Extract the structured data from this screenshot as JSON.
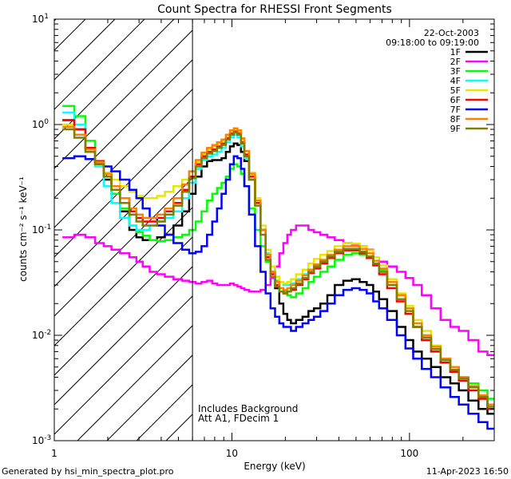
{
  "chart_data": {
    "type": "line",
    "title": "Count Spectra for RHESSI Front Segments",
    "xlabel": "Energy (keV)",
    "ylabel": "counts cm⁻² s⁻¹ keV⁻¹",
    "x_scale": "log",
    "y_scale": "log",
    "xlim": [
      1,
      300
    ],
    "ylim": [
      0.001,
      10
    ],
    "x_tick_labels": [
      {
        "value": 1,
        "label": "1"
      },
      {
        "value": 10,
        "label": "10"
      },
      {
        "value": 100,
        "label": "100"
      }
    ],
    "y_tick_labels": [
      {
        "value": 0.001,
        "base": "10",
        "exp": "-3"
      },
      {
        "value": 0.01,
        "base": "10",
        "exp": "-2"
      },
      {
        "value": 0.1,
        "base": "10",
        "exp": "-1"
      },
      {
        "value": 1,
        "base": "10",
        "exp": "0"
      },
      {
        "value": 10,
        "base": "10",
        "exp": "1"
      }
    ],
    "date": "22-Oct-2003",
    "time_range": "09:18:00 to 09:19:00",
    "hatched_region_max_kev": 6,
    "annotations": [
      "Includes Background",
      "Att A1, FDecim  1"
    ],
    "x": [
      1.2,
      1.4,
      1.6,
      1.8,
      2.0,
      2.2,
      2.5,
      2.8,
      3.0,
      3.3,
      3.6,
      4.0,
      4.4,
      5.0,
      5.5,
      6.0,
      6.5,
      7.0,
      7.5,
      8.0,
      8.5,
      9.0,
      9.5,
      10.0,
      10.5,
      11.0,
      11.5,
      12.0,
      13.0,
      14.0,
      15.0,
      16.0,
      17.0,
      18.0,
      19.0,
      20.0,
      21.0,
      22.0,
      24.0,
      26.0,
      28.0,
      30.0,
      33.0,
      36.0,
      40.0,
      45.0,
      50.0,
      55.0,
      60.0,
      65.0,
      70.0,
      80.0,
      90.0,
      100.0,
      110.0,
      125.0,
      140.0,
      160.0,
      180.0,
      200.0,
      230.0,
      260.0,
      290.0
    ],
    "series": [
      {
        "name": "1F",
        "color": "#000000",
        "values": [
          1.1,
          0.9,
          0.6,
          0.42,
          0.3,
          0.22,
          0.15,
          0.1,
          0.085,
          0.08,
          0.08,
          0.085,
          0.09,
          0.11,
          0.15,
          0.22,
          0.32,
          0.4,
          0.45,
          0.46,
          0.46,
          0.48,
          0.55,
          0.62,
          0.66,
          0.64,
          0.55,
          0.45,
          0.3,
          0.18,
          0.1,
          0.06,
          0.04,
          0.028,
          0.02,
          0.016,
          0.014,
          0.013,
          0.014,
          0.015,
          0.017,
          0.018,
          0.02,
          0.024,
          0.03,
          0.033,
          0.034,
          0.032,
          0.03,
          0.026,
          0.022,
          0.017,
          0.012,
          0.009,
          0.007,
          0.006,
          0.005,
          0.004,
          0.0035,
          0.003,
          0.0024,
          0.002,
          0.0018
        ]
      },
      {
        "name": "2F",
        "color": "#ff00ff",
        "values": [
          0.085,
          0.09,
          0.085,
          0.075,
          0.07,
          0.065,
          0.06,
          0.055,
          0.05,
          0.045,
          0.04,
          0.038,
          0.036,
          0.034,
          0.033,
          0.032,
          0.031,
          0.032,
          0.033,
          0.031,
          0.03,
          0.03,
          0.03,
          0.031,
          0.03,
          0.029,
          0.028,
          0.027,
          0.026,
          0.026,
          0.027,
          0.03,
          0.035,
          0.045,
          0.06,
          0.075,
          0.09,
          0.1,
          0.11,
          0.11,
          0.1,
          0.095,
          0.09,
          0.085,
          0.08,
          0.075,
          0.072,
          0.07,
          0.065,
          0.055,
          0.05,
          0.045,
          0.04,
          0.035,
          0.03,
          0.024,
          0.018,
          0.014,
          0.012,
          0.011,
          0.009,
          0.007,
          0.0065
        ]
      },
      {
        "name": "3F",
        "color": "#00ff00",
        "values": [
          1.5,
          1.2,
          0.7,
          0.45,
          0.32,
          0.22,
          0.16,
          0.11,
          0.095,
          0.088,
          0.08,
          0.078,
          0.08,
          0.085,
          0.09,
          0.1,
          0.12,
          0.15,
          0.19,
          0.22,
          0.25,
          0.28,
          0.32,
          0.38,
          0.42,
          0.4,
          0.34,
          0.26,
          0.16,
          0.1,
          0.07,
          0.05,
          0.04,
          0.033,
          0.028,
          0.026,
          0.024,
          0.023,
          0.025,
          0.028,
          0.032,
          0.036,
          0.04,
          0.045,
          0.052,
          0.058,
          0.06,
          0.058,
          0.054,
          0.048,
          0.042,
          0.032,
          0.024,
          0.018,
          0.013,
          0.01,
          0.008,
          0.006,
          0.005,
          0.004,
          0.0035,
          0.003,
          0.0025
        ]
      },
      {
        "name": "4F",
        "color": "#00ffff",
        "values": [
          1.3,
          1.0,
          0.6,
          0.4,
          0.26,
          0.18,
          0.13,
          0.11,
          0.1,
          0.1,
          0.11,
          0.12,
          0.13,
          0.15,
          0.2,
          0.28,
          0.38,
          0.46,
          0.5,
          0.52,
          0.55,
          0.6,
          0.68,
          0.76,
          0.8,
          0.76,
          0.62,
          0.48,
          0.3,
          0.18,
          0.1,
          0.06,
          0.045,
          0.036,
          0.032,
          0.03,
          0.03,
          0.031,
          0.034,
          0.038,
          0.042,
          0.046,
          0.05,
          0.055,
          0.062,
          0.066,
          0.066,
          0.062,
          0.056,
          0.048,
          0.04,
          0.03,
          0.022,
          0.016,
          0.012,
          0.009,
          0.007,
          0.0055,
          0.0045,
          0.0038,
          0.003,
          0.0025,
          0.002
        ]
      },
      {
        "name": "5F",
        "color": "#e6e600",
        "values": [
          1.0,
          0.8,
          0.55,
          0.42,
          0.35,
          0.3,
          0.26,
          0.23,
          0.21,
          0.2,
          0.2,
          0.21,
          0.23,
          0.26,
          0.3,
          0.36,
          0.44,
          0.52,
          0.58,
          0.62,
          0.66,
          0.7,
          0.76,
          0.84,
          0.88,
          0.84,
          0.72,
          0.56,
          0.35,
          0.2,
          0.11,
          0.065,
          0.045,
          0.036,
          0.032,
          0.031,
          0.032,
          0.034,
          0.038,
          0.042,
          0.048,
          0.053,
          0.058,
          0.063,
          0.07,
          0.075,
          0.074,
          0.07,
          0.064,
          0.055,
          0.046,
          0.034,
          0.025,
          0.019,
          0.014,
          0.011,
          0.008,
          0.006,
          0.005,
          0.004,
          0.0033,
          0.0027,
          0.0022
        ]
      },
      {
        "name": "6F",
        "color": "#ff0000",
        "values": [
          1.1,
          0.9,
          0.6,
          0.45,
          0.34,
          0.26,
          0.2,
          0.15,
          0.13,
          0.12,
          0.12,
          0.13,
          0.15,
          0.18,
          0.24,
          0.32,
          0.42,
          0.5,
          0.55,
          0.58,
          0.62,
          0.66,
          0.74,
          0.82,
          0.86,
          0.82,
          0.68,
          0.52,
          0.32,
          0.18,
          0.1,
          0.055,
          0.038,
          0.03,
          0.026,
          0.025,
          0.026,
          0.027,
          0.03,
          0.034,
          0.039,
          0.043,
          0.048,
          0.054,
          0.06,
          0.064,
          0.064,
          0.06,
          0.054,
          0.046,
          0.038,
          0.028,
          0.021,
          0.016,
          0.012,
          0.009,
          0.007,
          0.0055,
          0.0045,
          0.0037,
          0.003,
          0.0025,
          0.002
        ]
      },
      {
        "name": "7F",
        "color": "#0000ff",
        "values": [
          0.48,
          0.5,
          0.47,
          0.44,
          0.4,
          0.36,
          0.3,
          0.24,
          0.2,
          0.16,
          0.13,
          0.11,
          0.09,
          0.075,
          0.065,
          0.06,
          0.062,
          0.07,
          0.09,
          0.12,
          0.16,
          0.22,
          0.3,
          0.42,
          0.5,
          0.48,
          0.38,
          0.26,
          0.14,
          0.07,
          0.04,
          0.025,
          0.018,
          0.015,
          0.013,
          0.012,
          0.012,
          0.011,
          0.012,
          0.013,
          0.014,
          0.015,
          0.017,
          0.02,
          0.024,
          0.027,
          0.028,
          0.027,
          0.025,
          0.021,
          0.018,
          0.014,
          0.01,
          0.0075,
          0.006,
          0.0048,
          0.004,
          0.0032,
          0.0026,
          0.0022,
          0.0018,
          0.0015,
          0.0013
        ]
      },
      {
        "name": "8F",
        "color": "#ff8000",
        "values": [
          0.95,
          0.8,
          0.58,
          0.44,
          0.34,
          0.26,
          0.2,
          0.16,
          0.14,
          0.13,
          0.13,
          0.14,
          0.16,
          0.2,
          0.27,
          0.36,
          0.46,
          0.54,
          0.6,
          0.64,
          0.68,
          0.72,
          0.8,
          0.88,
          0.92,
          0.88,
          0.74,
          0.56,
          0.34,
          0.19,
          0.1,
          0.058,
          0.04,
          0.032,
          0.028,
          0.027,
          0.028,
          0.03,
          0.033,
          0.037,
          0.042,
          0.047,
          0.052,
          0.058,
          0.065,
          0.07,
          0.07,
          0.066,
          0.06,
          0.051,
          0.043,
          0.032,
          0.024,
          0.018,
          0.013,
          0.01,
          0.0078,
          0.006,
          0.005,
          0.004,
          0.0033,
          0.0027,
          0.0022
        ]
      },
      {
        "name": "9F",
        "color": "#808000",
        "values": [
          0.9,
          0.75,
          0.55,
          0.42,
          0.32,
          0.24,
          0.18,
          0.14,
          0.12,
          0.11,
          0.11,
          0.12,
          0.14,
          0.17,
          0.23,
          0.31,
          0.4,
          0.48,
          0.53,
          0.56,
          0.6,
          0.64,
          0.72,
          0.8,
          0.84,
          0.8,
          0.66,
          0.5,
          0.3,
          0.17,
          0.09,
          0.052,
          0.036,
          0.029,
          0.026,
          0.025,
          0.026,
          0.028,
          0.031,
          0.035,
          0.04,
          0.045,
          0.05,
          0.056,
          0.062,
          0.066,
          0.066,
          0.062,
          0.056,
          0.048,
          0.04,
          0.03,
          0.022,
          0.017,
          0.012,
          0.0095,
          0.0074,
          0.0058,
          0.0047,
          0.0039,
          0.0032,
          0.0026,
          0.0021
        ]
      }
    ]
  },
  "footer": {
    "generated_by": "Generated by hsi_min_spectra_plot.pro",
    "timestamp": "11-Apr-2023 16:50"
  }
}
